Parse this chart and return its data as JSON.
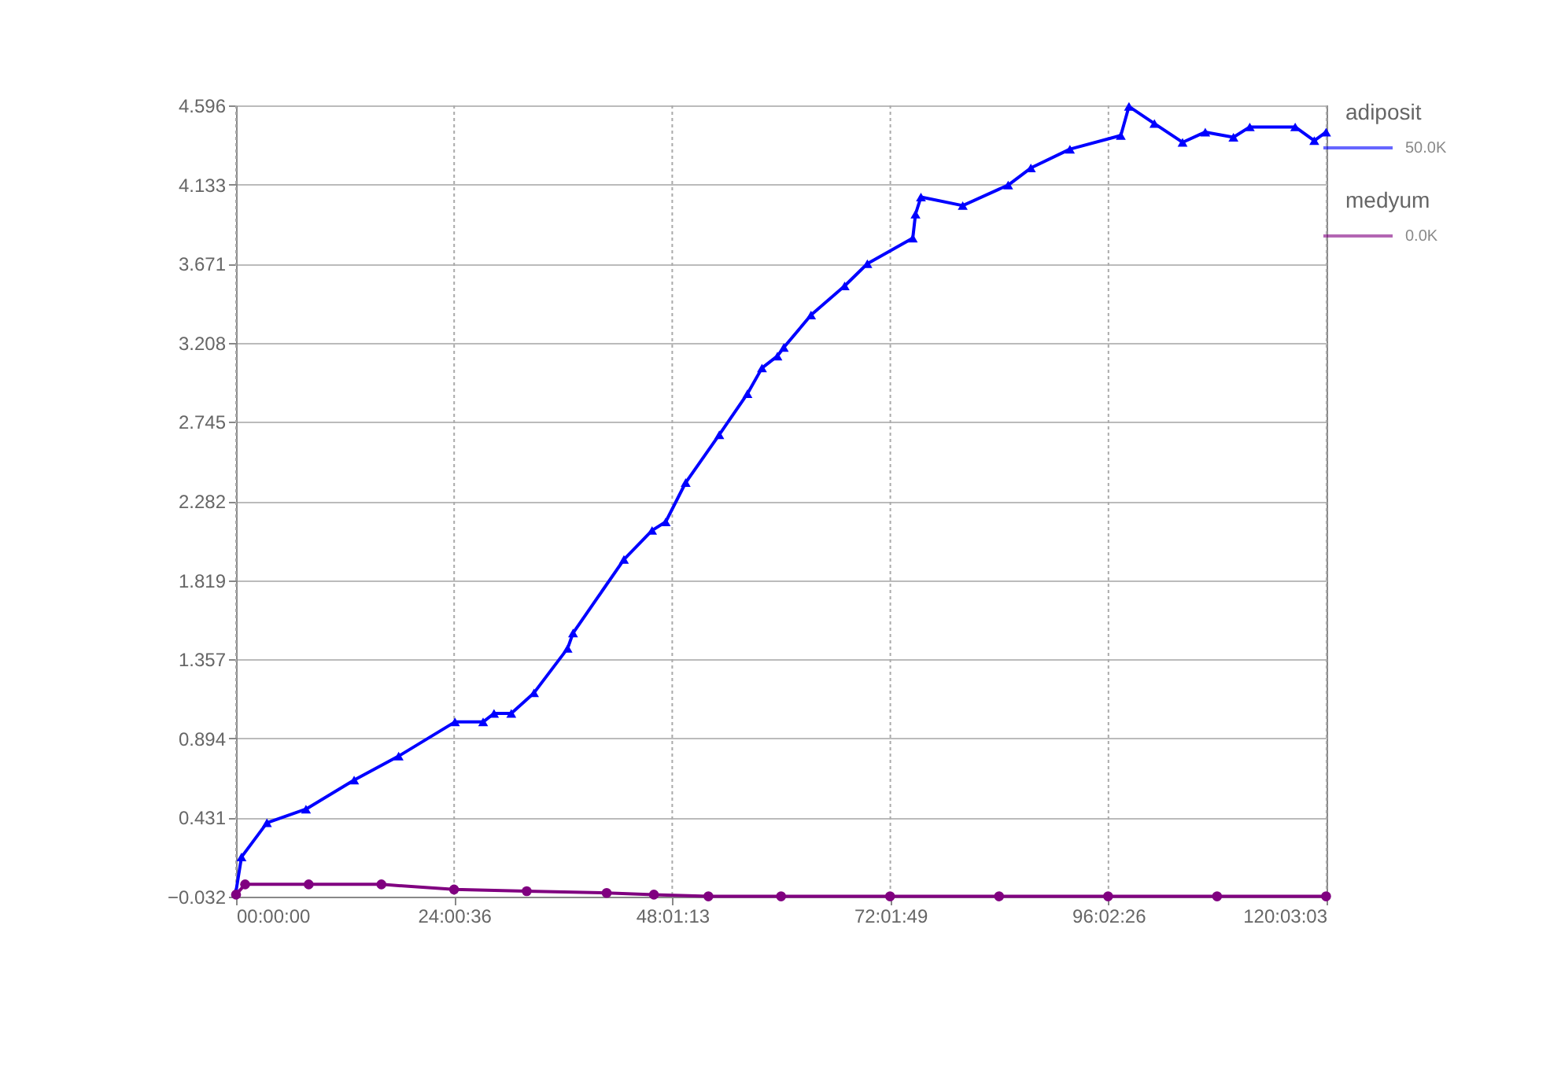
{
  "chart_data": {
    "type": "line",
    "xlim": [
      0,
      120.0508
    ],
    "ylim": [
      -0.032,
      4.596
    ],
    "xticks": [
      {
        "value": 0,
        "label": "00:00:00"
      },
      {
        "value": 24.01,
        "label": "24:00:36"
      },
      {
        "value": 48.0203,
        "label": "48:01:13"
      },
      {
        "value": 72.0303,
        "label": "72:01:49"
      },
      {
        "value": 96.0406,
        "label": "96:02:26"
      },
      {
        "value": 120.0508,
        "label": "120:03:03"
      }
    ],
    "yticks": [
      -0.032,
      0.431,
      0.894,
      1.357,
      1.819,
      2.282,
      2.745,
      3.208,
      3.671,
      4.133,
      4.596
    ],
    "grid": true,
    "legend": "top right",
    "line_style": "solid",
    "annotations": [
      "50.0K",
      "0.0K"
    ],
    "series": [
      {
        "name": "adiposit",
        "color": "#0000ff",
        "marker": "triangle",
        "x": [
          0,
          0.6,
          3.4,
          7.7,
          13,
          17.9,
          24.1,
          27.2,
          28.4,
          30.3,
          32.8,
          36.5,
          37.1,
          42.7,
          45.8,
          47.3,
          49.5,
          53.2,
          56.3,
          57.9,
          59.6,
          60.3,
          63.3,
          67.0,
          69.5,
          74.5,
          74.8,
          75.4,
          80.0,
          85.0,
          87.5,
          91.8,
          97.4,
          98.3,
          101.1,
          104.2,
          106.7,
          109.8,
          111.6,
          116.6,
          118.7,
          120.0
        ],
        "values": [
          0.0,
          0.2,
          0.4,
          0.48,
          0.65,
          0.79,
          0.99,
          0.99,
          1.04,
          1.04,
          1.16,
          1.42,
          1.51,
          1.94,
          2.11,
          2.16,
          2.39,
          2.67,
          2.91,
          3.06,
          3.13,
          3.18,
          3.37,
          3.54,
          3.67,
          3.82,
          3.96,
          4.06,
          4.01,
          4.13,
          4.23,
          4.34,
          4.42,
          4.59,
          4.49,
          4.38,
          4.44,
          4.41,
          4.47,
          4.47,
          4.39,
          4.44
        ]
      },
      {
        "name": "medyum",
        "color": "#800080",
        "marker": "circle",
        "x": [
          0,
          1,
          8,
          16,
          24,
          32,
          40.8,
          46,
          52,
          60,
          72,
          84,
          96,
          108,
          120
        ],
        "values": [
          -0.02,
          0.04,
          0.04,
          0.04,
          0.01,
          0.0,
          -0.01,
          -0.02,
          -0.03,
          -0.03,
          -0.03,
          -0.03,
          -0.03,
          -0.03,
          -0.03
        ]
      }
    ]
  }
}
